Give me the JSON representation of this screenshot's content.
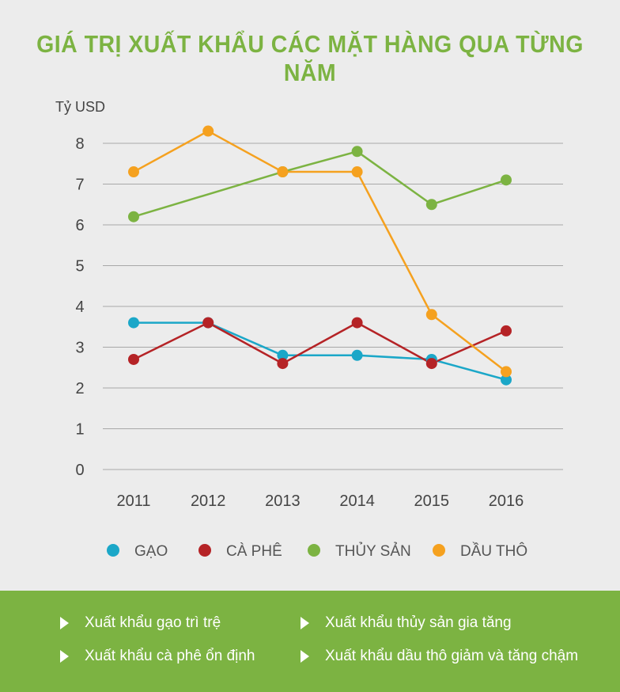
{
  "title": "GIÁ TRỊ XUẤT KHẨU CÁC MẶT HÀNG QUA TỪNG NĂM",
  "colors": {
    "title": "#7cb342",
    "footer_bg": "#7cb342",
    "grid": "#a8a8a8",
    "axis_text": "#444444"
  },
  "chart_data": {
    "type": "line",
    "ylabel": "Tỷ USD",
    "ylim": [
      0,
      8
    ],
    "yticks": [
      "0",
      "1",
      "2",
      "3",
      "4",
      "5",
      "6",
      "7",
      "8"
    ],
    "categories": [
      "2011",
      "2012",
      "2013",
      "2014",
      "2015",
      "2016"
    ],
    "grid": true,
    "legend_position": "bottom",
    "series": [
      {
        "name": "GẠO",
        "color": "#1ba7c8",
        "values": [
          3.6,
          3.6,
          2.8,
          2.8,
          2.7,
          2.2
        ]
      },
      {
        "name": "CÀ PHÊ",
        "color": "#b52326",
        "values": [
          2.7,
          3.6,
          2.6,
          3.6,
          2.6,
          3.4
        ]
      },
      {
        "name": "THỦY SẢN",
        "color": "#7cb342",
        "values": [
          6.2,
          null,
          7.3,
          7.8,
          6.5,
          7.1
        ]
      },
      {
        "name": "DẦU THÔ",
        "color": "#f5a11f",
        "values": [
          7.3,
          8.3,
          7.3,
          7.3,
          3.8,
          2.4
        ]
      }
    ]
  },
  "footer": {
    "items": [
      "Xuất khẩu gạo trì trệ",
      "Xuất khẩu thủy sản gia tăng",
      "Xuất khẩu cà phê ổn định",
      "Xuất khẩu dầu thô giảm và tăng chậm"
    ]
  }
}
